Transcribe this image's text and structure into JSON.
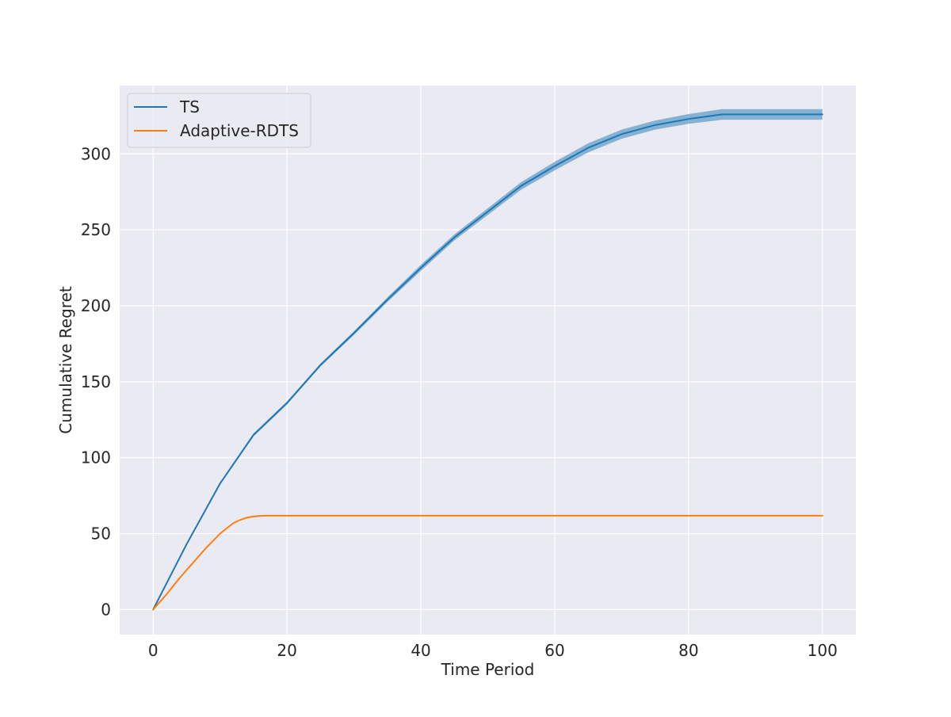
{
  "chart_data": {
    "type": "line",
    "title": "",
    "xlabel": "Time Period",
    "ylabel": "Cumulative Regret",
    "xlim": [
      -5,
      105
    ],
    "ylim": [
      -16.5,
      345
    ],
    "xticks": [
      0,
      20,
      40,
      60,
      80,
      100
    ],
    "yticks": [
      0,
      50,
      100,
      150,
      200,
      250,
      300
    ],
    "grid": true,
    "legend_position": "top-left",
    "series": [
      {
        "name": "TS",
        "color": "#1f77b4",
        "x": [
          0,
          5,
          10,
          15,
          20,
          25,
          30,
          35,
          40,
          45,
          50,
          55,
          60,
          65,
          70,
          75,
          80,
          85,
          88,
          90,
          95,
          100
        ],
        "y": [
          0,
          43,
          83,
          115,
          136,
          161,
          182,
          204,
          225,
          245,
          262,
          279,
          292,
          304,
          313,
          319,
          323,
          326,
          326,
          326,
          326,
          326
        ],
        "band_halfwidth": [
          0,
          0.5,
          0.8,
          1,
          1,
          1,
          1.2,
          1.5,
          2,
          2,
          2.2,
          2.5,
          2.8,
          3,
          3,
          3,
          3.2,
          3.5,
          3.5,
          3.5,
          3.5,
          3.5
        ]
      },
      {
        "name": "Adaptive-RDTS",
        "color": "#ff7f0e",
        "x": [
          0,
          2,
          4,
          6,
          8,
          10,
          12,
          13,
          14,
          15,
          16,
          17,
          20,
          30,
          40,
          50,
          60,
          70,
          80,
          90,
          100
        ],
        "y": [
          0,
          10,
          21,
          31,
          41,
          50,
          57,
          59,
          60.5,
          61.3,
          61.7,
          61.8,
          61.8,
          61.8,
          61.8,
          61.8,
          61.8,
          61.8,
          61.8,
          61.8,
          61.8
        ]
      }
    ]
  }
}
